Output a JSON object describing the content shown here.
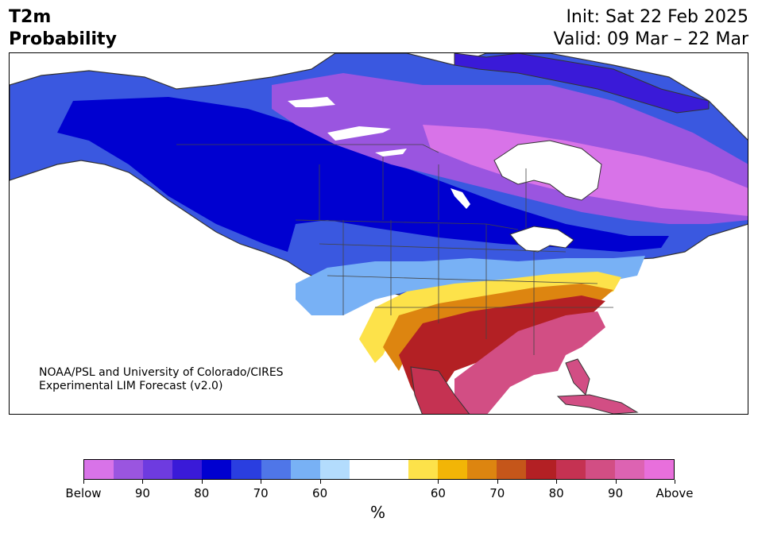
{
  "title": {
    "line1": "T2m",
    "line2": "Probability"
  },
  "dates": {
    "init": "Init: Sat 22 Feb 2025",
    "valid": "Valid: 09 Mar – 22 Mar"
  },
  "credit": {
    "line1": "NOAA/PSL and University of Colorado/CIRES",
    "line2": "Experimental LIM Forecast (v2.0)"
  },
  "colorbar": {
    "colors": [
      "#d873e8",
      "#9a55e0",
      "#6e3be0",
      "#3a1ad8",
      "#0000d0",
      "#2a3ee0",
      "#4f76e8",
      "#78b1f5",
      "#b3dcfd",
      "#ffffff",
      "#ffffff",
      "#fde24a",
      "#f2b506",
      "#dd8510",
      "#c5561a",
      "#b32024",
      "#c53252",
      "#d24e84",
      "#dd63b2",
      "#e86fdc"
    ],
    "tick_labels": [
      "Below",
      "90",
      "80",
      "70",
      "60",
      "60",
      "70",
      "80",
      "90",
      "Above"
    ],
    "unit": "%"
  },
  "map_colors": {
    "land": "#ffffff",
    "water": "#ffffff",
    "border": "#444444"
  }
}
